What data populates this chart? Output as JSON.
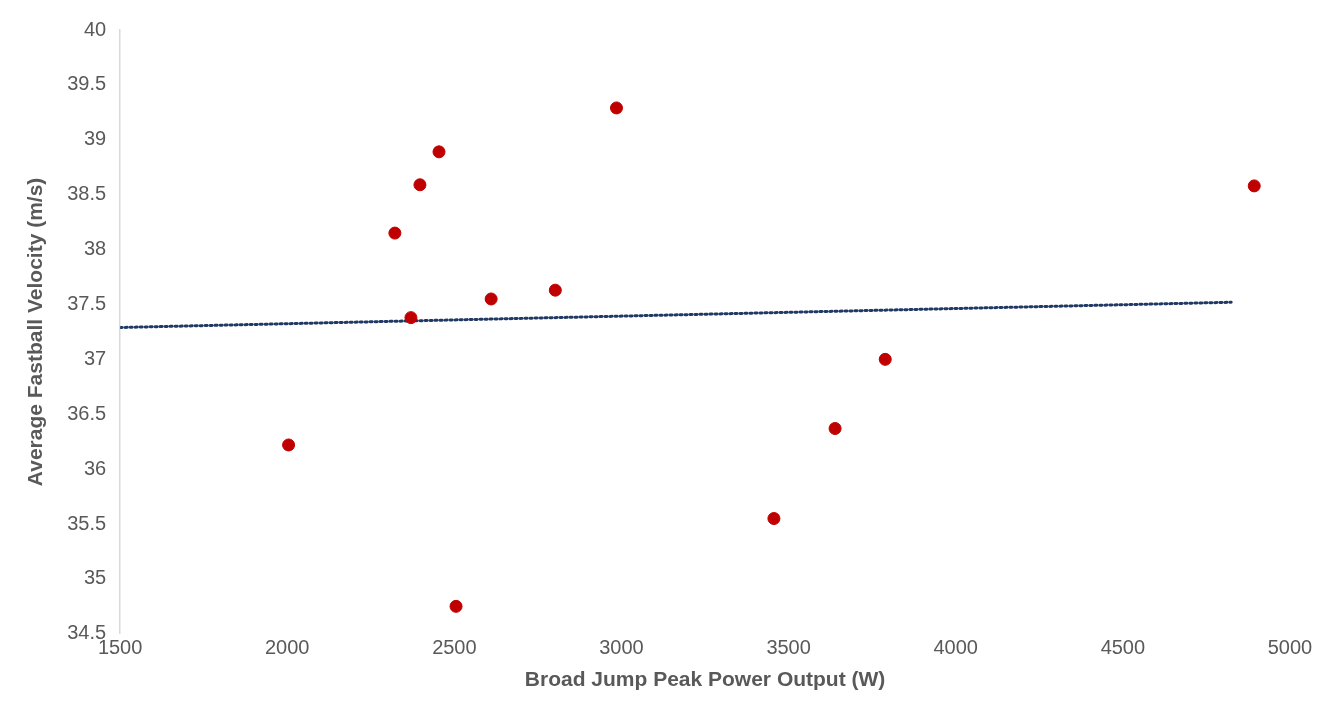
{
  "chart_data": {
    "type": "scatter",
    "xlabel": "Broad Jump Peak Power Output (W)",
    "ylabel": "Average Fastball Velocity (m/s)",
    "xlim": [
      1500,
      5000
    ],
    "xticks": [
      1500,
      2000,
      2500,
      3000,
      3500,
      4000,
      4500,
      5000
    ],
    "ylim": [
      34.5,
      40
    ],
    "yticks": [
      34.5,
      35,
      35.5,
      36,
      36.5,
      37,
      37.5,
      38,
      38.5,
      39,
      39.5,
      40
    ],
    "grid": false,
    "legend": false,
    "series": [
      {
        "color": "#c00000",
        "marker": "circle",
        "x": [
          2004,
          2322,
          2370,
          2397,
          2454,
          2505,
          2610,
          2802,
          2985,
          3456,
          3639,
          3789,
          4893
        ],
        "values": [
          36.22,
          38.15,
          37.38,
          38.59,
          38.89,
          34.75,
          37.55,
          37.63,
          39.29,
          35.55,
          36.37,
          37.0,
          38.58
        ]
      },
      {
        "type": "line",
        "color": "#1f3864",
        "marker": "none",
        "line_style": "dotted",
        "x": [
          1500,
          4824
        ],
        "values": [
          37.29,
          37.52
        ]
      }
    ]
  }
}
